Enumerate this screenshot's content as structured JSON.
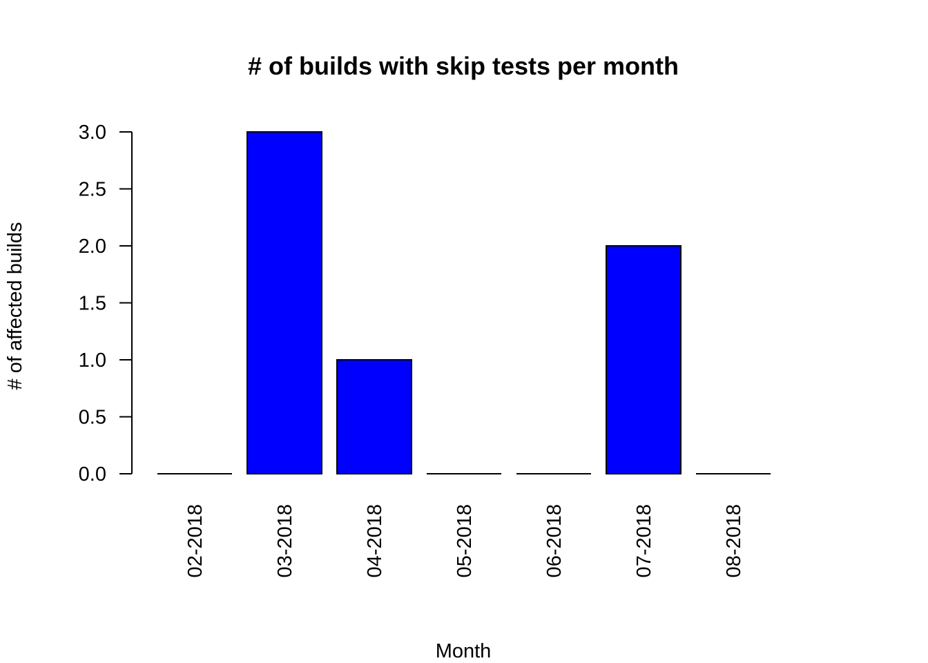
{
  "chart_data": {
    "type": "bar",
    "title": "# of builds with skip tests per month",
    "xlabel": "Month",
    "ylabel": "# of affected builds",
    "categories": [
      "02-2018",
      "03-2018",
      "04-2018",
      "05-2018",
      "06-2018",
      "07-2018",
      "08-2018"
    ],
    "values": [
      0,
      3,
      1,
      0,
      0,
      2,
      0
    ],
    "ylim": [
      0,
      3
    ],
    "yticks": [
      "0.0",
      "0.5",
      "1.0",
      "1.5",
      "2.0",
      "2.5",
      "3.0"
    ],
    "bar_color": "#0000FF",
    "grid": false,
    "legend": "none"
  }
}
